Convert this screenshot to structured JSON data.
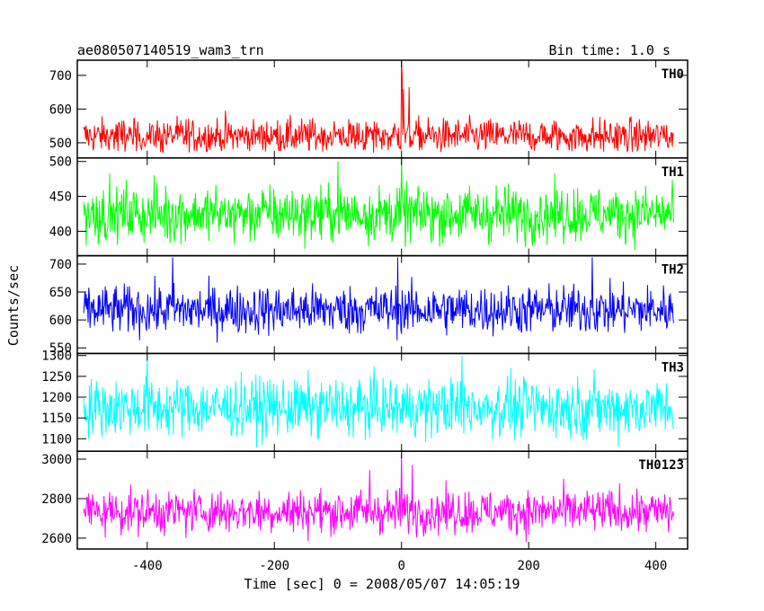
{
  "chart_data": {
    "type": "line",
    "title": "ae080507140519_wam3_trn",
    "subtitle": "Bin time: 1.0 s",
    "xlabel": "Time [sec] 0 = 2008/05/07 14:05:19",
    "ylabel": "Counts/sec",
    "xlim": [
      -510,
      450
    ],
    "x_range": [
      -500,
      428
    ],
    "x_step": 1,
    "x_ticks": [
      -400,
      -200,
      0,
      200,
      400
    ],
    "grid": false,
    "panels": [
      {
        "name": "TH0",
        "color": "#ff0000",
        "ylim": [
          455,
          745
        ],
        "y_ticks": [
          500,
          600,
          700
        ],
        "baseline": 520,
        "noise": 26,
        "lo": 470,
        "hi": 640,
        "peaks": [
          {
            "x": 0,
            "value": 745
          },
          {
            "x": 1,
            "value": 700
          },
          {
            "x": 3,
            "value": 660
          },
          {
            "x": 12,
            "value": 665
          }
        ]
      },
      {
        "name": "TH1",
        "color": "#00ff00",
        "ylim": [
          365,
          505
        ],
        "y_ticks": [
          400,
          450,
          500
        ],
        "baseline": 425,
        "noise": 20,
        "lo": 370,
        "hi": 490,
        "peaks": [
          {
            "x": 0,
            "value": 505
          },
          {
            "x": -100,
            "value": 500
          }
        ]
      },
      {
        "name": "TH2",
        "color": "#0000ff",
        "ylim": [
          540,
          715
        ],
        "y_ticks": [
          550,
          600,
          650,
          700
        ],
        "baseline": 618,
        "noise": 22,
        "lo": 545,
        "hi": 715,
        "peaks": [
          {
            "x": -6,
            "value": 712
          },
          {
            "x": -360,
            "value": 712
          },
          {
            "x": 300,
            "value": 712
          }
        ]
      },
      {
        "name": "TH3",
        "color": "#00ffff",
        "ylim": [
          1070,
          1305
        ],
        "y_ticks": [
          1100,
          1150,
          1200,
          1250,
          1300
        ],
        "baseline": 1175,
        "noise": 35,
        "lo": 1075,
        "hi": 1300,
        "peaks": [
          {
            "x": -400,
            "value": 1300
          },
          {
            "x": 95,
            "value": 1300
          }
        ]
      },
      {
        "name": "TH0123",
        "color": "#ff00ff",
        "ylim": [
          2545,
          3040
        ],
        "y_ticks": [
          2600,
          2800,
          3000
        ],
        "baseline": 2735,
        "noise": 55,
        "lo": 2550,
        "hi": 3000,
        "peaks": [
          {
            "x": 0,
            "value": 3030
          },
          {
            "x": 17,
            "value": 2970
          },
          {
            "x": -50,
            "value": 2945
          }
        ]
      }
    ]
  }
}
